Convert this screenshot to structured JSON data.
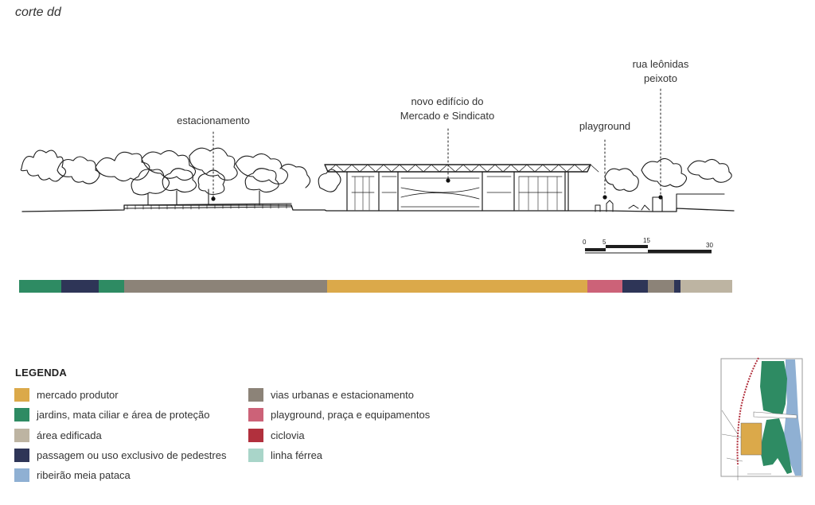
{
  "title": "corte dd",
  "annotations": {
    "estacionamento": "estacionamento",
    "mercado_line1": "novo edifício do",
    "mercado_line2": "Mercado e Sindicato",
    "playground": "playground",
    "rua_line1": "rua leônidas",
    "rua_line2": "peixoto"
  },
  "scale_bar": {
    "ticks": [
      "0",
      "5",
      "15",
      "30"
    ]
  },
  "colors": {
    "mercado": "#dba94a",
    "jardins": "#2e8b63",
    "edificada": "#bdb4a2",
    "pedestres": "#2e3557",
    "ribeirao": "#8fb0d3",
    "vias": "#8c8378",
    "playground": "#cc6278",
    "ciclovia": "#b1303d",
    "ferrea": "#a9d5c9"
  },
  "strip": [
    {
      "category": "jardins",
      "color": "#2e8b63",
      "fraction": 0.059
    },
    {
      "category": "pedestres",
      "color": "#2e3557",
      "fraction": 0.053
    },
    {
      "category": "jardins",
      "color": "#2e8b63",
      "fraction": 0.035
    },
    {
      "category": "vias",
      "color": "#8c8378",
      "fraction": 0.285
    },
    {
      "category": "mercado",
      "color": "#dba94a",
      "fraction": 0.365
    },
    {
      "category": "playground",
      "color": "#cc6278",
      "fraction": 0.049
    },
    {
      "category": "pedestres",
      "color": "#2e3557",
      "fraction": 0.036
    },
    {
      "category": "vias",
      "color": "#8c8378",
      "fraction": 0.037
    },
    {
      "category": "pedestres",
      "color": "#2e3557",
      "fraction": 0.009
    },
    {
      "category": "edificada",
      "color": "#bdb4a2",
      "fraction": 0.072
    }
  ],
  "legend": {
    "title": "LEGENDA",
    "col1": [
      {
        "label": "mercado produtor",
        "color": "#dba94a"
      },
      {
        "label": "jardins, mata ciliar e área de proteção",
        "color": "#2e8b63"
      },
      {
        "label": "área edificada",
        "color": "#bdb4a2"
      },
      {
        "label": "passagem ou uso exclusivo de pedestres",
        "color": "#2e3557"
      },
      {
        "label": "ribeirão meia pataca",
        "color": "#8fb0d3"
      }
    ],
    "col2": [
      {
        "label": "vias urbanas e estacionamento",
        "color": "#8c8378"
      },
      {
        "label": "playground, praça e equipamentos",
        "color": "#cc6278"
      },
      {
        "label": "ciclovia",
        "color": "#b1303d"
      },
      {
        "label": "linha férrea",
        "color": "#a9d5c9"
      }
    ]
  }
}
